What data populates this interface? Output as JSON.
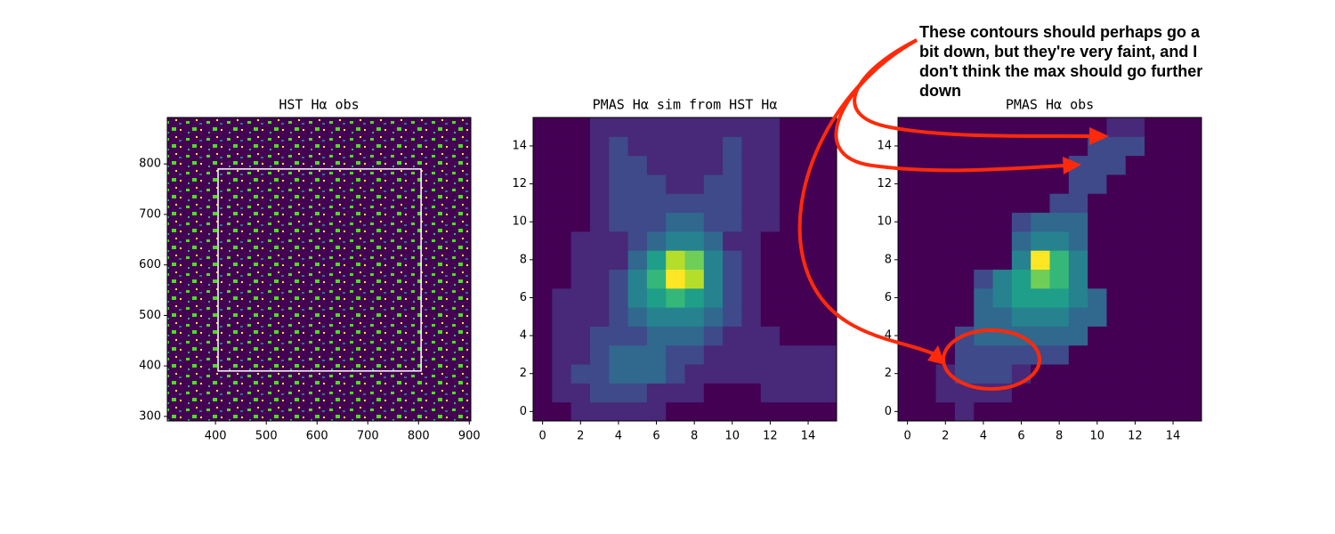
{
  "chart_data": [
    {
      "type": "image",
      "title": "HST Hα obs",
      "xlim": [
        305,
        903
      ],
      "ylim": [
        291,
        892
      ],
      "xticks": [
        400,
        500,
        600,
        700,
        800,
        900
      ],
      "yticks": [
        300,
        400,
        500,
        600,
        700,
        800
      ],
      "region": {
        "x": [
          405,
          805
        ],
        "y": [
          390,
          790
        ]
      },
      "region_color": "#ffffff"
    },
    {
      "type": "heatmap",
      "title": "PMAS Hα sim from HST Hα",
      "xlim": [
        -0.5,
        15.5
      ],
      "ylim": [
        -0.5,
        15.5
      ],
      "xticks": [
        0,
        2,
        4,
        6,
        8,
        10,
        12,
        14
      ],
      "yticks": [
        0,
        2,
        4,
        6,
        8,
        10,
        12,
        14
      ],
      "values": [
        [
          0,
          0,
          1,
          1,
          1,
          1,
          1,
          0,
          0,
          0,
          0,
          0,
          0,
          0,
          0,
          0
        ],
        [
          0,
          1,
          1,
          2,
          2,
          2,
          1,
          1,
          1,
          0,
          0,
          0,
          1,
          1,
          1,
          1
        ],
        [
          0,
          1,
          2,
          2,
          3,
          3,
          3,
          2,
          1,
          1,
          1,
          1,
          1,
          1,
          1,
          1
        ],
        [
          0,
          1,
          1,
          2,
          3,
          3,
          3,
          2,
          2,
          1,
          1,
          1,
          1,
          1,
          1,
          1
        ],
        [
          0,
          1,
          1,
          2,
          2,
          2,
          3,
          3,
          3,
          2,
          1,
          1,
          1,
          0,
          0,
          0
        ],
        [
          0,
          1,
          1,
          1,
          2,
          3,
          4,
          4,
          4,
          3,
          2,
          1,
          0,
          0,
          0,
          0
        ],
        [
          0,
          1,
          1,
          1,
          2,
          4,
          6,
          7,
          6,
          4,
          2,
          1,
          0,
          0,
          0,
          0
        ],
        [
          0,
          0,
          1,
          1,
          2,
          4,
          7,
          10,
          9,
          4,
          2,
          1,
          0,
          0,
          0,
          0
        ],
        [
          0,
          0,
          1,
          1,
          1,
          3,
          6,
          9,
          8,
          4,
          2,
          1,
          0,
          0,
          0,
          0
        ],
        [
          0,
          0,
          1,
          1,
          1,
          2,
          3,
          4,
          4,
          3,
          1,
          1,
          0,
          0,
          0,
          0
        ],
        [
          0,
          0,
          0,
          1,
          2,
          2,
          2,
          3,
          3,
          2,
          2,
          1,
          1,
          0,
          0,
          0
        ],
        [
          0,
          0,
          0,
          1,
          2,
          2,
          2,
          2,
          2,
          2,
          2,
          1,
          1,
          0,
          0,
          0
        ],
        [
          0,
          0,
          0,
          1,
          2,
          2,
          2,
          1,
          1,
          2,
          2,
          1,
          1,
          0,
          0,
          0
        ],
        [
          0,
          0,
          0,
          1,
          2,
          2,
          1,
          1,
          1,
          1,
          2,
          1,
          1,
          0,
          0,
          0
        ],
        [
          0,
          0,
          0,
          1,
          2,
          1,
          1,
          1,
          1,
          1,
          2,
          1,
          1,
          0,
          0,
          0
        ],
        [
          0,
          0,
          0,
          1,
          1,
          1,
          1,
          1,
          1,
          1,
          1,
          1,
          1,
          0,
          0,
          0
        ]
      ],
      "vlim": [
        0,
        10
      ]
    },
    {
      "type": "heatmap",
      "title": "PMAS Hα obs",
      "xlim": [
        -0.5,
        15.5
      ],
      "ylim": [
        -0.5,
        15.5
      ],
      "xticks": [
        0,
        2,
        4,
        6,
        8,
        10,
        12,
        14
      ],
      "yticks": [
        0,
        2,
        4,
        6,
        8,
        10,
        12,
        14
      ],
      "values": [
        [
          0,
          0,
          0,
          1,
          0,
          0,
          0,
          0,
          0,
          0,
          0,
          0,
          0,
          0,
          0,
          0
        ],
        [
          0,
          0,
          1,
          1,
          1,
          1,
          0,
          0,
          0,
          0,
          0,
          0,
          0,
          0,
          0,
          0
        ],
        [
          0,
          0,
          1,
          2,
          2,
          2,
          1,
          0,
          0,
          0,
          0,
          0,
          0,
          0,
          0,
          0
        ],
        [
          0,
          0,
          0,
          2,
          2,
          2,
          2,
          2,
          2,
          0,
          0,
          0,
          0,
          0,
          0,
          0
        ],
        [
          0,
          0,
          0,
          2,
          3,
          3,
          3,
          3,
          3,
          3,
          0,
          0,
          0,
          0,
          0,
          0
        ],
        [
          0,
          0,
          0,
          0,
          3,
          3,
          4,
          4,
          4,
          3,
          3,
          0,
          0,
          0,
          0,
          0
        ],
        [
          0,
          0,
          0,
          0,
          3,
          4,
          5,
          6,
          5,
          4,
          3,
          0,
          0,
          0,
          0,
          0
        ],
        [
          0,
          0,
          0,
          0,
          2,
          4,
          6,
          8,
          7,
          4,
          0,
          0,
          0,
          0,
          0,
          0
        ],
        [
          0,
          0,
          0,
          0,
          0,
          0,
          4,
          10,
          7,
          4,
          0,
          0,
          0,
          0,
          0,
          0
        ],
        [
          0,
          0,
          0,
          0,
          0,
          0,
          3,
          4,
          4,
          3,
          0,
          0,
          0,
          0,
          0,
          0
        ],
        [
          0,
          0,
          0,
          0,
          0,
          0,
          2,
          3,
          3,
          3,
          0,
          0,
          0,
          0,
          0,
          0
        ],
        [
          0,
          0,
          0,
          0,
          0,
          0,
          0,
          0,
          2,
          2,
          0,
          0,
          0,
          0,
          0,
          0
        ],
        [
          0,
          0,
          0,
          0,
          0,
          0,
          0,
          0,
          0,
          2,
          2,
          0,
          0,
          0,
          0,
          0
        ],
        [
          0,
          0,
          0,
          0,
          0,
          0,
          0,
          0,
          0,
          2,
          2,
          2,
          0,
          0,
          0,
          0
        ],
        [
          0,
          0,
          0,
          0,
          0,
          0,
          0,
          0,
          0,
          0,
          2,
          2,
          2,
          0,
          0,
          0
        ],
        [
          0,
          0,
          0,
          0,
          0,
          0,
          0,
          0,
          0,
          0,
          0,
          1,
          1,
          0,
          0,
          0
        ]
      ],
      "vlim": [
        0,
        10
      ]
    }
  ],
  "annotation": {
    "lines": [
      "These contours should perhaps go a",
      "bit down, but they're very faint, and I",
      "don't think the max should go further",
      "down"
    ],
    "color": "#ff2a0a"
  }
}
